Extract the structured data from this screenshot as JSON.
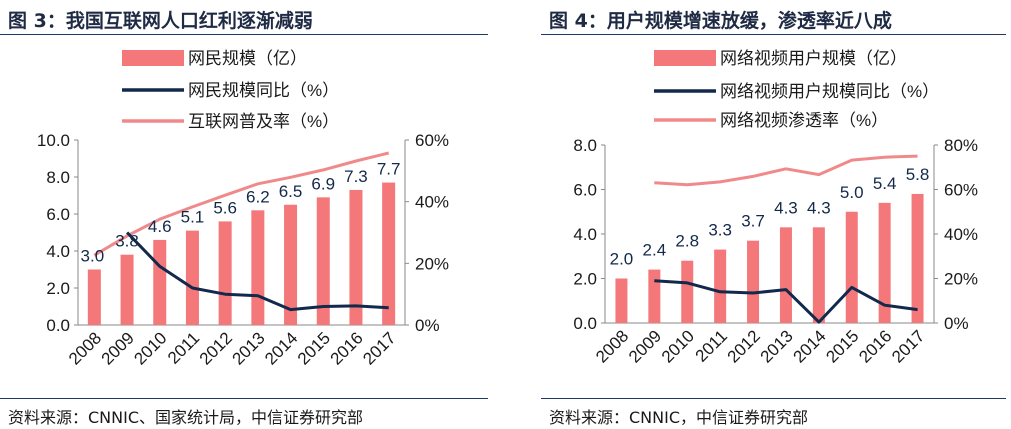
{
  "charts": {
    "left": {
      "title": "图 3：我国互联网人口红利逐渐减弱",
      "source": "资料来源：CNNIC、国家统计局，中信证券研究部"
    },
    "right": {
      "title": "图 4：用户规模增速放缓，渗透率近八成",
      "source": "资料来源：CNNIC，中信证券研究部"
    }
  },
  "colors": {
    "bar": "#f4777a",
    "yoy": "#13294b",
    "penetration": "#f08a8a",
    "rule": "#1f3864"
  },
  "chart_data": [
    {
      "type": "bar",
      "title": "图 3：我国互联网人口红利逐渐减弱",
      "categories": [
        "2008",
        "2009",
        "2010",
        "2011",
        "2012",
        "2013",
        "2014",
        "2015",
        "2016",
        "2017"
      ],
      "series": [
        {
          "name": "网民规模（亿）",
          "type": "bar",
          "axis": "left",
          "values": [
            3.0,
            3.8,
            4.6,
            5.1,
            5.6,
            6.2,
            6.5,
            6.9,
            7.3,
            7.7
          ],
          "labels": [
            "3.0",
            "3.8",
            "4.6",
            "5.1",
            "5.6",
            "6.2",
            "6.5",
            "6.9",
            "7.3",
            "7.7"
          ]
        },
        {
          "name": "网民规模同比（%）",
          "type": "line",
          "axis": "right",
          "values": [
            null,
            30,
            19,
            12,
            10,
            9.5,
            5,
            6,
            6.2,
            5.6
          ]
        },
        {
          "name": "互联网普及率（%）",
          "type": "line",
          "axis": "right",
          "values": [
            22.6,
            28.9,
            34.3,
            38.3,
            42.1,
            45.8,
            47.9,
            50.3,
            53.2,
            55.8
          ]
        }
      ],
      "yleft": {
        "min": 0,
        "max": 10,
        "ticks": [
          "0.0",
          "2.0",
          "4.0",
          "6.0",
          "8.0",
          "10.0"
        ]
      },
      "yright": {
        "min": 0,
        "max": 60,
        "ticks": [
          "0%",
          "20%",
          "40%",
          "60%"
        ]
      },
      "legend": "top",
      "grid": false
    },
    {
      "type": "bar",
      "title": "图 4：用户规模增速放缓，渗透率近八成",
      "categories": [
        "2008",
        "2009",
        "2010",
        "2011",
        "2012",
        "2013",
        "2014",
        "2015",
        "2016",
        "2017"
      ],
      "series": [
        {
          "name": "网络视频用户规模（亿）",
          "type": "bar",
          "axis": "left",
          "values": [
            2.0,
            2.4,
            2.8,
            3.3,
            3.7,
            4.3,
            4.3,
            5.0,
            5.4,
            5.8
          ],
          "labels": [
            "2.0",
            "2.4",
            "2.8",
            "3.3",
            "3.7",
            "4.3",
            "4.3",
            "5.0",
            "5.4",
            "5.8"
          ]
        },
        {
          "name": "网络视频用户规模同比（%）",
          "type": "line",
          "axis": "right",
          "values": [
            null,
            19,
            18,
            14,
            13.5,
            15,
            0.4,
            16,
            8,
            6
          ]
        },
        {
          "name": "网络视频渗透率（%）",
          "type": "line",
          "axis": "right",
          "values": [
            null,
            63,
            62.1,
            63.4,
            65.9,
            69.3,
            66.7,
            73.2,
            74.5,
            75
          ]
        }
      ],
      "yleft": {
        "min": 0,
        "max": 8,
        "ticks": [
          "0.0",
          "2.0",
          "4.0",
          "6.0",
          "8.0"
        ]
      },
      "yright": {
        "min": 0,
        "max": 80,
        "ticks": [
          "0%",
          "20%",
          "40%",
          "60%",
          "80%"
        ]
      },
      "legend": "top",
      "grid": false
    }
  ]
}
